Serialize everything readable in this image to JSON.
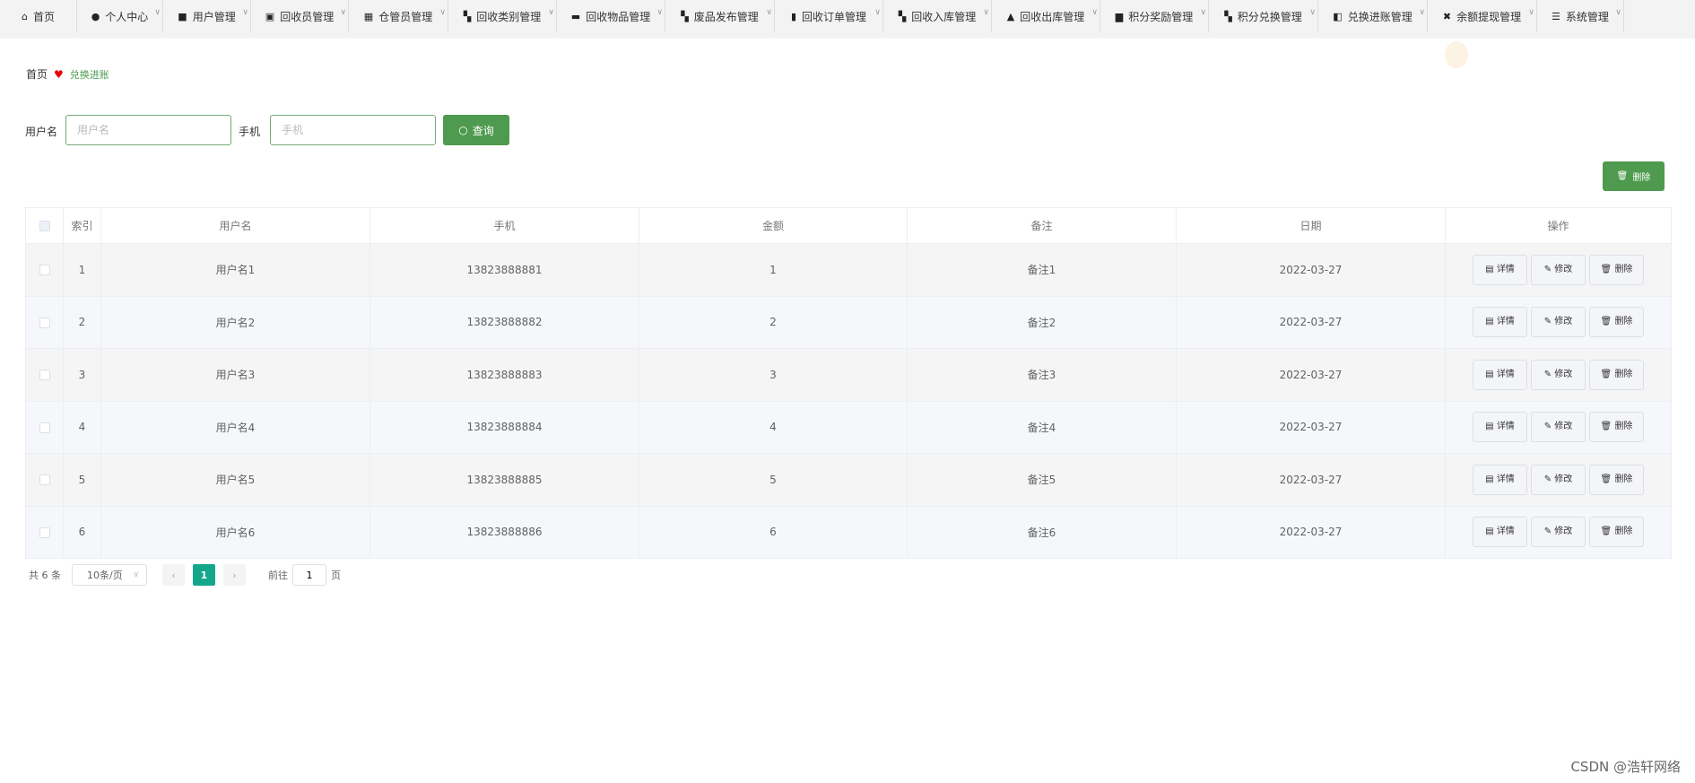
{
  "nav": [
    {
      "label": "首页",
      "icon": "home-icon",
      "glyph": "⌂",
      "w": 86,
      "chev": false
    },
    {
      "label": "个人中心",
      "icon": "user-icon",
      "glyph": "●",
      "w": 96,
      "chev": true
    },
    {
      "label": "用户管理",
      "icon": "message-icon",
      "glyph": "■",
      "w": 98,
      "chev": true
    },
    {
      "label": "回收员管理",
      "icon": "clipboard-icon",
      "glyph": "▣",
      "w": 109,
      "chev": true
    },
    {
      "label": "仓管员管理",
      "icon": "grid-icon",
      "glyph": "▦",
      "w": 111,
      "chev": true
    },
    {
      "label": "回收类别管理",
      "icon": "apps-icon",
      "glyph": "▚",
      "w": 121,
      "chev": true
    },
    {
      "label": "回收物品管理",
      "icon": "briefcase-icon",
      "glyph": "▬",
      "w": 121,
      "chev": true
    },
    {
      "label": "废品发布管理",
      "icon": "apps-icon",
      "glyph": "▚",
      "w": 122,
      "chev": true
    },
    {
      "label": "回收订单管理",
      "icon": "bar-chart-icon",
      "glyph": "▮",
      "w": 121,
      "chev": true
    },
    {
      "label": "回收入库管理",
      "icon": "apps-icon",
      "glyph": "▚",
      "w": 121,
      "chev": true
    },
    {
      "label": "回收出库管理",
      "icon": "stamp-icon",
      "glyph": "▲",
      "w": 121,
      "chev": true
    },
    {
      "label": "积分奖励管理",
      "icon": "cup-icon",
      "glyph": "▆",
      "w": 121,
      "chev": true
    },
    {
      "label": "积分兑换管理",
      "icon": "apps-icon",
      "glyph": "▚",
      "w": 122,
      "chev": true
    },
    {
      "label": "兑换进账管理",
      "icon": "wallet-icon",
      "glyph": "◧",
      "w": 122,
      "chev": true
    },
    {
      "label": "余额提现管理",
      "icon": "ticket-icon",
      "glyph": "✖",
      "w": 122,
      "chev": true
    },
    {
      "label": "系统管理",
      "icon": "menu-icon",
      "glyph": "☰",
      "w": 97,
      "chev": true
    }
  ],
  "breadcrumb": {
    "home": "首页",
    "current": "兑换进账"
  },
  "search": {
    "username_label": "用户名",
    "username_placeholder": "用户名",
    "username_value": "",
    "phone_label": "手机",
    "phone_placeholder": "手机",
    "phone_value": "",
    "query_button": "查询"
  },
  "toolbar": {
    "delete_button": "删除"
  },
  "table": {
    "headers": [
      "索引",
      "用户名",
      "手机",
      "金额",
      "备注",
      "日期",
      "操作"
    ],
    "rows": [
      [
        "1",
        "用户名1",
        "13823888881",
        "1",
        "备注1",
        "2022-03-27"
      ],
      [
        "2",
        "用户名2",
        "13823888882",
        "2",
        "备注2",
        "2022-03-27"
      ],
      [
        "3",
        "用户名3",
        "13823888883",
        "3",
        "备注3",
        "2022-03-27"
      ],
      [
        "4",
        "用户名4",
        "13823888884",
        "4",
        "备注4",
        "2022-03-27"
      ],
      [
        "5",
        "用户名5",
        "13823888885",
        "5",
        "备注5",
        "2022-03-27"
      ],
      [
        "6",
        "用户名6",
        "13823888886",
        "6",
        "备注6",
        "2022-03-27"
      ]
    ],
    "actions": [
      "详情",
      "修改",
      "删除"
    ]
  },
  "pagination": {
    "total": "共 6 条",
    "page_size": "10条/页",
    "current_page": "1",
    "goto_label": "前往",
    "goto_value": "1",
    "page_suffix": "页"
  },
  "watermark": "CSDN @浩轩网络"
}
